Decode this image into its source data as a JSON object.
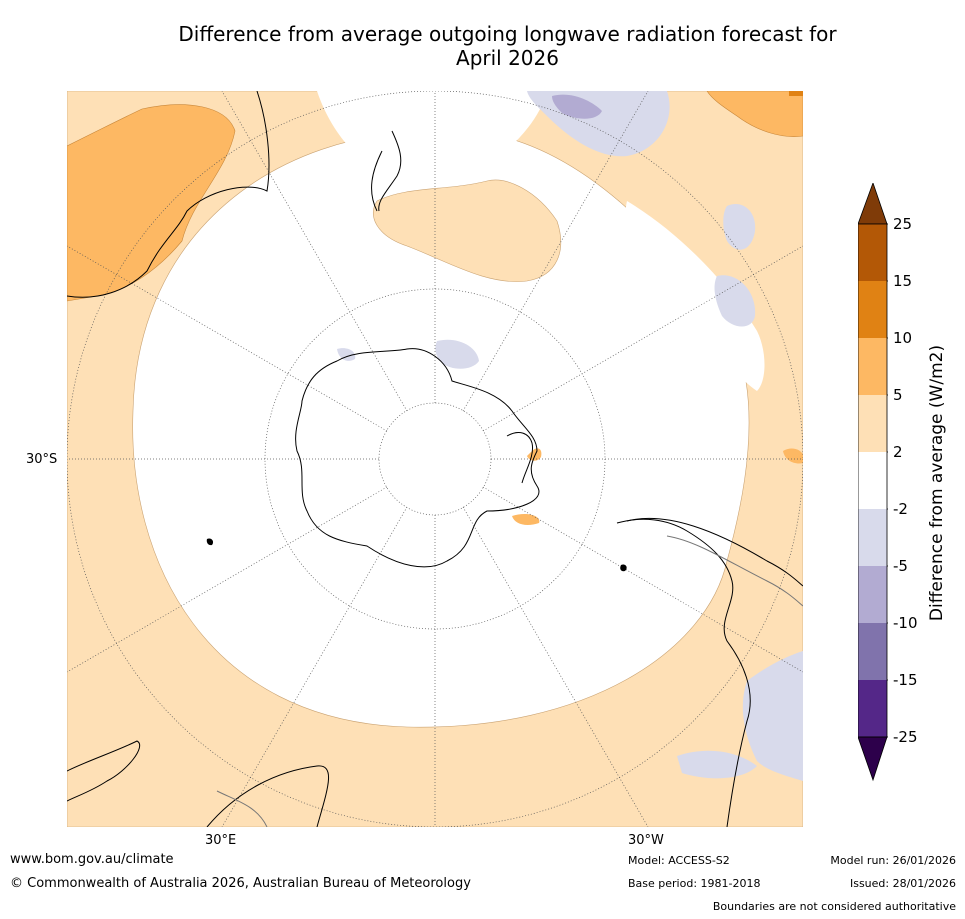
{
  "title_line1": "Difference from average outgoing longwave radiation forecast for",
  "title_line2": "April 2026",
  "map": {
    "projection": "south-polar-stereographic",
    "lat_label": "30°S",
    "lon_labels": {
      "east": "30°E",
      "west": "30°W"
    }
  },
  "colorbar": {
    "label": "Difference from average (W/m2)",
    "ticks": [
      "25",
      "15",
      "10",
      "5",
      "2",
      "-2",
      "-5",
      "-10",
      "-15",
      "-25"
    ],
    "colors": {
      "over": "#7f3b08",
      "15_to_25": "#b35806",
      "10_to_15": "#e08214",
      "5_to_10": "#fdb863",
      "2_to_5": "#fee0b6",
      "neutral": "#ffffff",
      "m2_to_m5": "#d8daeb",
      "m5_to_m10": "#b2abd2",
      "m10_to_m15": "#8073ac",
      "m15_to_m25": "#542788",
      "under": "#2d004b"
    }
  },
  "footer": {
    "website": "www.bom.gov.au/climate",
    "copyright": "© Commonwealth of Australia 2026, Australian Bureau of Meteorology",
    "model": "Model: ACCESS-S2",
    "base_period": "Base period: 1981-2018",
    "model_run": "Model run: 26/01/2026",
    "issued": "Issued: 28/01/2026",
    "disclaimer": "Boundaries are not considered authoritative"
  }
}
